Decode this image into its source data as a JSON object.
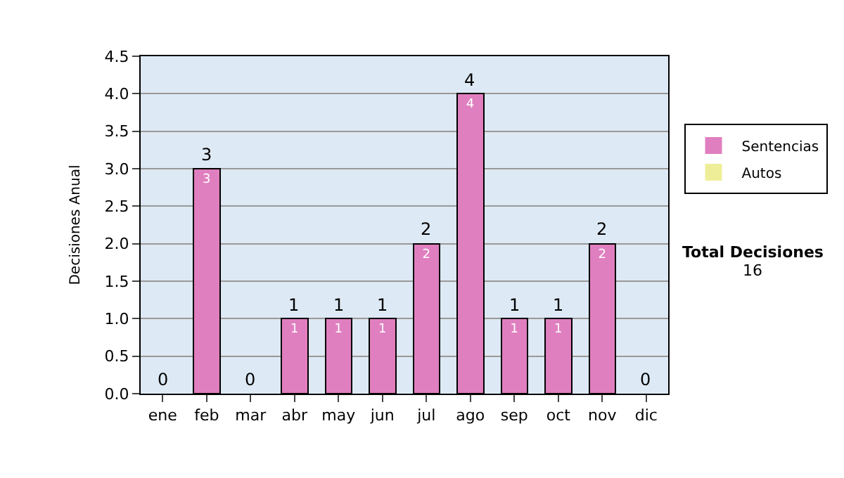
{
  "chart_data": {
    "type": "bar",
    "stacked": true,
    "ylabel": "Decisiones Anual",
    "categories": [
      "ene",
      "feb",
      "mar",
      "abr",
      "may",
      "jun",
      "jul",
      "ago",
      "sep",
      "oct",
      "nov",
      "dic"
    ],
    "series": [
      {
        "name": "Sentencias",
        "color": "#e07fbf",
        "values": [
          0,
          3,
          0,
          1,
          1,
          1,
          2,
          4,
          1,
          1,
          2,
          0
        ],
        "value_labels": [
          null,
          "3",
          null,
          "1",
          "1",
          "1",
          "2",
          "4",
          "1",
          "1",
          "2",
          null
        ]
      },
      {
        "name": "Autos",
        "color": "#eeee99",
        "values": [
          0,
          0,
          0,
          0,
          0,
          0,
          0,
          0,
          0,
          0,
          0,
          0
        ]
      }
    ],
    "totals": [
      "0",
      "3",
      "0",
      "1",
      "1",
      "1",
      "2",
      "4",
      "1",
      "1",
      "2",
      "0"
    ],
    "ylim": [
      0,
      4.5
    ],
    "yticks": [
      {
        "value": 0,
        "label": "0.0"
      },
      {
        "value": 0.5,
        "label": "0.5"
      },
      {
        "value": 1,
        "label": "1.0"
      },
      {
        "value": 1.5,
        "label": "1.5"
      },
      {
        "value": 2,
        "label": "2.0"
      },
      {
        "value": 2.5,
        "label": "2.5"
      },
      {
        "value": 3,
        "label": "3.0"
      },
      {
        "value": 3.5,
        "label": "3.5"
      },
      {
        "value": 4,
        "label": "4.0"
      },
      {
        "value": 4.5,
        "label": "4.5"
      }
    ],
    "grid": "y",
    "legend": "right",
    "annotations": [
      "Total Decisiones",
      "16"
    ]
  }
}
